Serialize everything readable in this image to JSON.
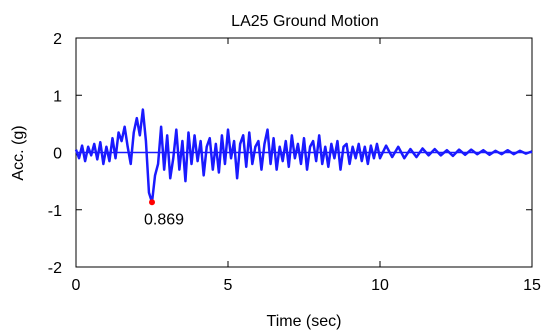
{
  "chart_data": {
    "type": "line",
    "title": "LA25 Ground Motion",
    "xlabel": "Time (sec)",
    "ylabel": "Acc. (g)",
    "xlim": [
      0,
      15
    ],
    "ylim": [
      -2,
      2
    ],
    "xticks": [
      0,
      5,
      10,
      15
    ],
    "yticks": [
      -2,
      -1,
      0,
      1,
      2
    ],
    "xtick_labels": [
      "0",
      "5",
      "10",
      "15"
    ],
    "ytick_labels": [
      "-2",
      "-1",
      "0",
      "1",
      "2"
    ],
    "grid": false,
    "legend": "none",
    "series": [
      {
        "color": "#1a1aff",
        "x": [
          0.0,
          0.1,
          0.2,
          0.3,
          0.4,
          0.5,
          0.6,
          0.7,
          0.8,
          0.9,
          1.0,
          1.1,
          1.2,
          1.3,
          1.4,
          1.5,
          1.6,
          1.7,
          1.8,
          1.9,
          2.0,
          2.1,
          2.2,
          2.3,
          2.4,
          2.5,
          2.6,
          2.7,
          2.8,
          2.9,
          3.0,
          3.1,
          3.2,
          3.3,
          3.4,
          3.5,
          3.6,
          3.7,
          3.8,
          3.9,
          4.0,
          4.1,
          4.2,
          4.3,
          4.4,
          4.5,
          4.6,
          4.7,
          4.8,
          4.9,
          5.0,
          5.1,
          5.2,
          5.3,
          5.4,
          5.5,
          5.6,
          5.7,
          5.8,
          5.9,
          6.0,
          6.1,
          6.2,
          6.3,
          6.4,
          6.5,
          6.6,
          6.7,
          6.8,
          6.9,
          7.0,
          7.1,
          7.2,
          7.3,
          7.4,
          7.5,
          7.6,
          7.7,
          7.8,
          7.9,
          8.0,
          8.1,
          8.2,
          8.3,
          8.4,
          8.5,
          8.6,
          8.7,
          8.8,
          8.9,
          9.0,
          9.1,
          9.2,
          9.3,
          9.4,
          9.5,
          9.6,
          9.7,
          9.8,
          9.9,
          10.0,
          10.2,
          10.4,
          10.6,
          10.8,
          11.0,
          11.2,
          11.4,
          11.6,
          11.8,
          12.0,
          12.2,
          12.4,
          12.6,
          12.8,
          13.0,
          13.2,
          13.4,
          13.6,
          13.8,
          14.0,
          14.2,
          14.4,
          14.6,
          14.8,
          15.0
        ],
        "y": [
          0.05,
          -0.1,
          0.12,
          -0.15,
          0.1,
          -0.05,
          0.15,
          -0.12,
          0.18,
          -0.2,
          0.1,
          -0.15,
          0.25,
          -0.1,
          0.35,
          0.2,
          0.45,
          0.1,
          -0.2,
          0.35,
          0.6,
          0.3,
          0.75,
          0.2,
          -0.7,
          -0.869,
          -0.4,
          -0.2,
          0.45,
          -0.3,
          0.3,
          -0.45,
          -0.1,
          0.4,
          -0.3,
          0.2,
          -0.5,
          0.35,
          -0.2,
          0.3,
          -0.15,
          0.2,
          -0.4,
          0.1,
          0.25,
          -0.3,
          0.15,
          -0.35,
          0.3,
          -0.2,
          0.4,
          -0.1,
          0.2,
          -0.45,
          0.15,
          0.3,
          -0.25,
          0.35,
          -0.2,
          0.1,
          0.2,
          -0.3,
          0.15,
          0.4,
          -0.2,
          0.25,
          -0.3,
          0.1,
          -0.15,
          0.2,
          -0.25,
          0.3,
          -0.1,
          0.15,
          -0.2,
          0.25,
          -0.3,
          0.1,
          0.2,
          -0.15,
          0.3,
          -0.2,
          0.1,
          -0.25,
          0.15,
          -0.1,
          0.2,
          -0.3,
          0.1,
          0.15,
          -0.2,
          0.1,
          -0.1,
          0.15,
          -0.15,
          0.1,
          -0.2,
          0.12,
          -0.1,
          0.15,
          -0.1,
          0.12,
          -0.08,
          0.1,
          -0.1,
          0.06,
          -0.08,
          0.07,
          -0.05,
          0.06,
          -0.05,
          0.04,
          -0.06,
          0.05,
          -0.04,
          0.05,
          -0.03,
          0.04,
          -0.04,
          0.03,
          -0.03,
          0.04,
          -0.03,
          0.03,
          -0.02,
          0.02
        ]
      }
    ],
    "annotations": [
      {
        "text": "0.869",
        "x": 2.5,
        "y": -0.869,
        "marker_color": "#ff0000"
      }
    ]
  }
}
